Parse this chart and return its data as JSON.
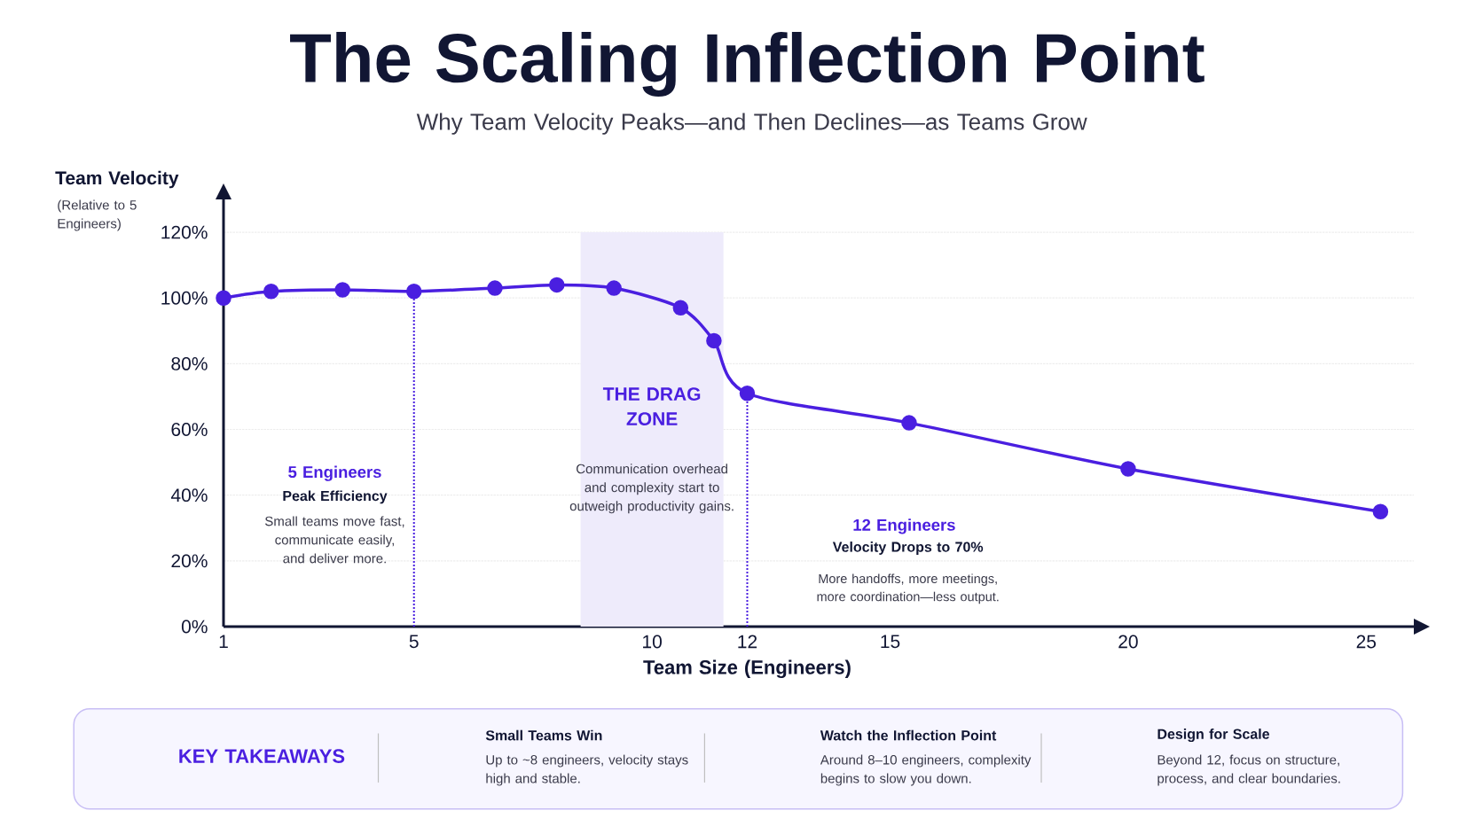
{
  "chart_data": {
    "type": "line",
    "title": "The Scaling Inflection Point",
    "subtitle": "Why Team Velocity Peaks—and Then Declines—as Teams Grow",
    "xlabel": "Team Size (Engineers)",
    "ylabel": "Team Velocity",
    "x": [
      1,
      2,
      3.5,
      5,
      6.7,
      8,
      9.2,
      10.6,
      11.3,
      12,
      15.4,
      20,
      25.3
    ],
    "series": [
      {
        "color": "#4a1fe0",
        "values": [
          100,
          102,
          102.5,
          102,
          103,
          104,
          103,
          97,
          87,
          71,
          62,
          48,
          35
        ]
      }
    ],
    "xlim": [
      1,
      26
    ],
    "ylim": [
      0,
      130
    ],
    "xticks": [
      1,
      5,
      10,
      12,
      15,
      20,
      25
    ],
    "yticks": [
      {
        "value": 0,
        "label": "0%"
      },
      {
        "value": 20,
        "label": "20%"
      },
      {
        "value": 40,
        "label": "40%"
      },
      {
        "value": 60,
        "label": "60%"
      },
      {
        "value": 80,
        "label": "80%"
      },
      {
        "value": 100,
        "label": "100%"
      },
      {
        "value": 120,
        "label": "120%"
      }
    ],
    "grid": "y",
    "marker": "circle",
    "line_style": "solid",
    "bands": [
      {
        "axis": "x",
        "from": 8.5,
        "to": 11.5,
        "label": "THE DRAG ZONE",
        "color": "#eeebfb"
      }
    ],
    "ref_lines": [
      {
        "axis": "x",
        "value": 5,
        "color": "#4a1fe0",
        "line_style": "dotted"
      },
      {
        "axis": "x",
        "value": 12,
        "color": "#4a1fe0",
        "line_style": "dotted"
      }
    ],
    "annotations": [
      "(Relative to 5 Engineers)",
      "5 Engineers",
      "Peak Efficiency",
      "Small teams move fast, communicate easily, and deliver more.",
      "Communication overhead and complexity start to outweigh productivity gains.",
      "12 Engineers",
      "Velocity Drops to 70%",
      "More handoffs, more meetings, more coordination—less output.",
      "KEY TAKEAWAYS",
      "Small Teams Win",
      "Up to ~8 engineers, velocity stays high and stable.",
      "Watch the Inflection Point",
      "Around 8–10 engineers, complexity begins to slow you down.",
      "Design for Scale",
      "Beyond 12, focus on structure, process, and clear boundaries."
    ]
  }
}
